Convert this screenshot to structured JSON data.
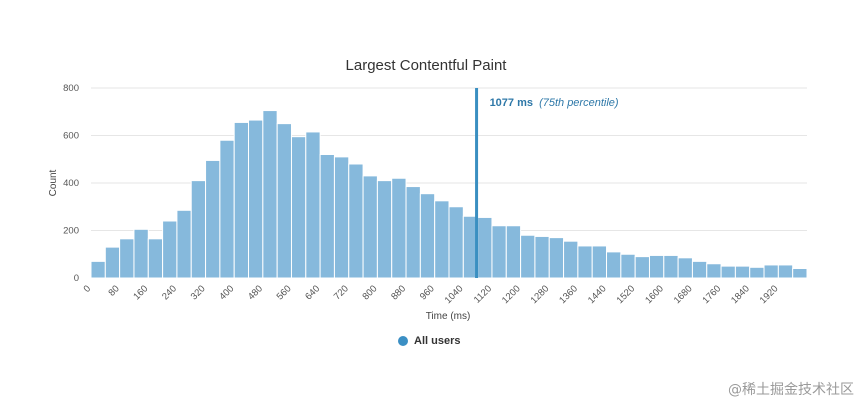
{
  "chart_data": {
    "type": "bar",
    "title": "Largest Contentful Paint",
    "xlabel": "Time (ms)",
    "ylabel": "Count",
    "ylim": [
      0,
      800
    ],
    "yticks": [
      0,
      200,
      400,
      600,
      800
    ],
    "bin_width": 40,
    "xticks": [
      "0",
      "80",
      "160",
      "240",
      "320",
      "400",
      "480",
      "560",
      "640",
      "720",
      "800",
      "880",
      "960",
      "1040",
      "1120",
      "1200",
      "1280",
      "1360",
      "1440",
      "1520",
      "1600",
      "1680",
      "1760",
      "1840",
      "1920"
    ],
    "grid": true,
    "series": [
      {
        "name": "All users",
        "color": "#86b9dc",
        "values": [
          70,
          130,
          165,
          205,
          165,
          240,
          285,
          410,
          495,
          580,
          655,
          665,
          705,
          650,
          595,
          615,
          520,
          510,
          480,
          430,
          410,
          420,
          385,
          355,
          325,
          300,
          260,
          255,
          220,
          220,
          180,
          175,
          170,
          155,
          135,
          135,
          110,
          100,
          90,
          95,
          95,
          85,
          70,
          60,
          50,
          50,
          45,
          55,
          55,
          40
        ]
      }
    ],
    "annotations": [
      {
        "x": 1077,
        "value_label": "1077 ms",
        "note_label": "(75th percentile)",
        "color": "#3a8fc1"
      }
    ],
    "legend": {
      "position": "bottom-center",
      "items": [
        {
          "label": "All users",
          "color": "#3b8fc4"
        }
      ]
    }
  },
  "watermark": "@稀土掘金技术社区"
}
